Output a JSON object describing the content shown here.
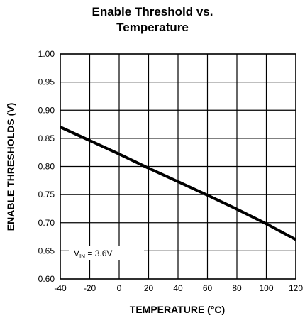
{
  "chart_data": {
    "type": "line",
    "title_line1": "Enable Threshold vs.",
    "title_line2": "Temperature",
    "xlabel": "TEMPERATURE (°C)",
    "ylabel": "ENABLE THRESHOLDS (V)",
    "xlim": [
      -40,
      120
    ],
    "ylim": [
      0.6,
      1.0
    ],
    "x_ticks": [
      "-40",
      "-20",
      "0",
      "20",
      "40",
      "60",
      "80",
      "100",
      "120"
    ],
    "y_ticks": [
      "0.60",
      "0.65",
      "0.70",
      "0.75",
      "0.80",
      "0.85",
      "0.90",
      "0.95",
      "1.00"
    ],
    "grid": true,
    "series": [
      {
        "x": [
          -40,
          -20,
          0,
          20,
          40,
          60,
          80,
          100,
          120
        ],
        "y": [
          0.87,
          0.846,
          0.822,
          0.797,
          0.773,
          0.749,
          0.724,
          0.698,
          0.67
        ]
      }
    ],
    "annotation": {
      "prefix": "V",
      "subscript": "IN",
      "suffix": " = 3.6V"
    }
  }
}
